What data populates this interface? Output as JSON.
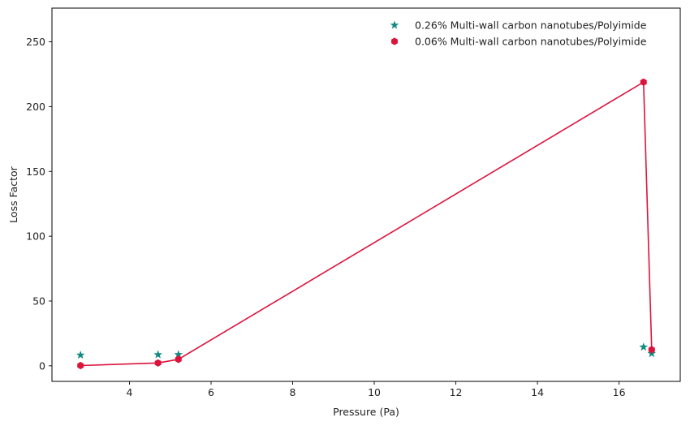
{
  "chart_data": {
    "type": "scatter",
    "title": "",
    "xlabel": "Pressure (Pa)",
    "ylabel": "Loss Factor",
    "xlim": [
      2.1,
      17.5
    ],
    "ylim": [
      -12,
      276
    ],
    "x_ticks": [
      4,
      6,
      8,
      10,
      12,
      14,
      16
    ],
    "y_ticks": [
      0,
      50,
      100,
      150,
      200,
      250
    ],
    "grid": false,
    "legend_position": "top-right",
    "series": [
      {
        "name": "0.26% Multi-wall carbon nanotubes/Polyimide",
        "marker": "star",
        "color": "#138a82",
        "line": false,
        "x": [
          2.8,
          4.7,
          5.2,
          16.6,
          16.8
        ],
        "y": [
          8.3,
          8.6,
          8.7,
          14.5,
          9.5
        ]
      },
      {
        "name": "0.06% Multi-wall carbon nanotubes/Polyimide",
        "marker": "hexagon",
        "color": "#dc143c",
        "line": true,
        "x": [
          2.8,
          4.7,
          5.2,
          16.6,
          16.8
        ],
        "y": [
          0.2,
          2.2,
          5.0,
          218.9,
          12.5
        ]
      }
    ]
  }
}
